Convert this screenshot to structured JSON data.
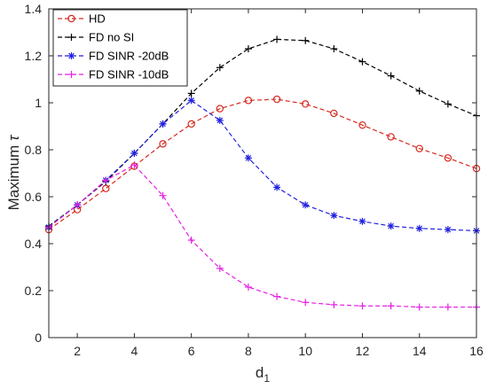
{
  "chart_data": {
    "type": "line",
    "xlabel_main": "d",
    "xlabel_sub": "1",
    "ylabel_main": "Maximum ",
    "ylabel_symbol": "τ",
    "xlim": [
      1,
      16
    ],
    "ylim": [
      0,
      1.4
    ],
    "x_ticks": [
      2,
      4,
      6,
      8,
      10,
      12,
      14,
      16
    ],
    "y_ticks": [
      0,
      0.2,
      0.4,
      0.6,
      0.8,
      1,
      1.2,
      1.4
    ],
    "grid": false,
    "legend_position": "top-left",
    "x": [
      1,
      2,
      3,
      4,
      5,
      6,
      7,
      8,
      9,
      10,
      11,
      12,
      13,
      14,
      15,
      16
    ],
    "series": [
      {
        "name": "HD",
        "color": "#d62a1f",
        "marker": "circle",
        "values": [
          0.46,
          0.545,
          0.635,
          0.73,
          0.825,
          0.91,
          0.975,
          1.01,
          1.015,
          0.995,
          0.955,
          0.905,
          0.855,
          0.805,
          0.765,
          0.72
        ]
      },
      {
        "name": "FD no SI",
        "color": "#000000",
        "marker": "plus",
        "values": [
          0.475,
          0.565,
          0.665,
          0.785,
          0.91,
          1.04,
          1.15,
          1.23,
          1.27,
          1.265,
          1.23,
          1.175,
          1.115,
          1.05,
          0.995,
          0.945
        ]
      },
      {
        "name": "FD SINR -20dB",
        "color": "#2121e0",
        "marker": "star",
        "values": [
          0.47,
          0.565,
          0.67,
          0.785,
          0.91,
          1.01,
          0.925,
          0.765,
          0.64,
          0.565,
          0.52,
          0.495,
          0.475,
          0.465,
          0.46,
          0.455
        ]
      },
      {
        "name": "FD SINR -10dB",
        "color": "#e521e5",
        "marker": "plus",
        "values": [
          0.47,
          0.565,
          0.67,
          0.735,
          0.605,
          0.415,
          0.295,
          0.215,
          0.175,
          0.15,
          0.14,
          0.135,
          0.135,
          0.13,
          0.13,
          0.13
        ]
      }
    ]
  }
}
